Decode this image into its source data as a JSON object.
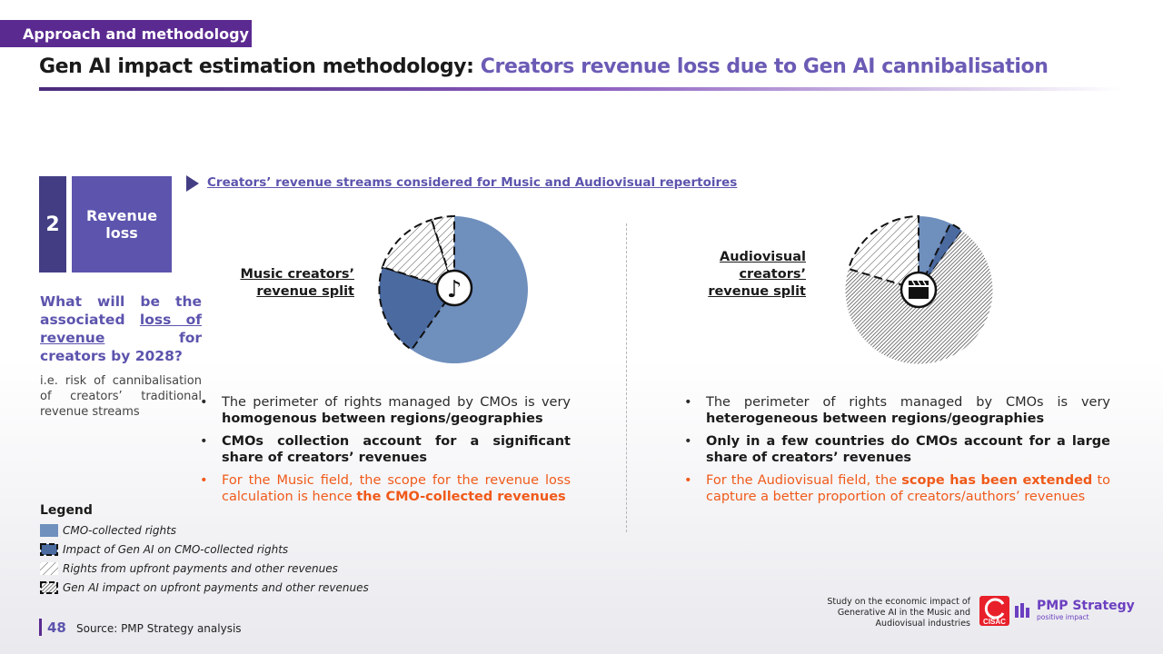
{
  "section_tag": "Approach and methodology",
  "title": {
    "main": "Gen AI impact estimation methodology:",
    "accent": "Creators revenue loss due to Gen AI cannibalisation"
  },
  "step": {
    "number": "2",
    "label": "Revenue loss"
  },
  "question": {
    "part1": "What will be the associated ",
    "underlined": "loss of revenue",
    "part2": " for creators by 2028?"
  },
  "ie_note": "i.e. risk of cannibalisation of creators’ traditional revenue streams",
  "subtitle": "Creators’ revenue streams considered for Music and Audiovisual repertoires",
  "music": {
    "label": "Music creators’ revenue split",
    "bullets": [
      {
        "text1": "The perimeter of rights managed by CMOs is very ",
        "bold": "homogenous between regions/geographies"
      },
      {
        "bold": "CMOs collection account for a significant share of creators’ revenues"
      },
      {
        "text1": "For the Music field, the scope for the revenue loss calculation is hence ",
        "bold": "the CMO-collected revenues"
      }
    ]
  },
  "audiovisual": {
    "label": "Audiovisual creators’ revenue split",
    "bullets": [
      {
        "text1": "The perimeter of rights managed by CMOs is very ",
        "bold": "heterogeneous between regions/geographies"
      },
      {
        "bold": "Only in a few countries do CMOs account for a large share of creators’ revenues"
      },
      {
        "text1": "For the Audiovisual field, the ",
        "bold": "scope has been extended",
        "text2": " to capture a better proportion of creators/authors’ revenues"
      }
    ]
  },
  "legend": {
    "title": "Legend",
    "items": [
      "CMO-collected rights",
      "Impact of Gen AI on CMO-collected rights",
      "Rights from upfront payments and other revenues",
      "Gen AI impact on upfront payments and other revenues"
    ]
  },
  "footer": {
    "page_number": "48",
    "source": "Source:  PMP Strategy analysis",
    "study": "Study on the economic impact of Generative AI in the Music and Audiovisual industries",
    "cisac": "CISAC",
    "pmp_name": "PMP Strategy",
    "pmp_tagline": "positive impact"
  },
  "colors": {
    "purple_dark": "#433e84",
    "purple": "#5c54ad",
    "tag_purple": "#5b2a91",
    "cmo_light": "#6f8fbd",
    "cmo_dark": "#4a6aa0",
    "orange": "#f05a1a"
  },
  "icons": {
    "music": "music-note-icon",
    "audiovisual": "clapperboard-icon"
  }
}
